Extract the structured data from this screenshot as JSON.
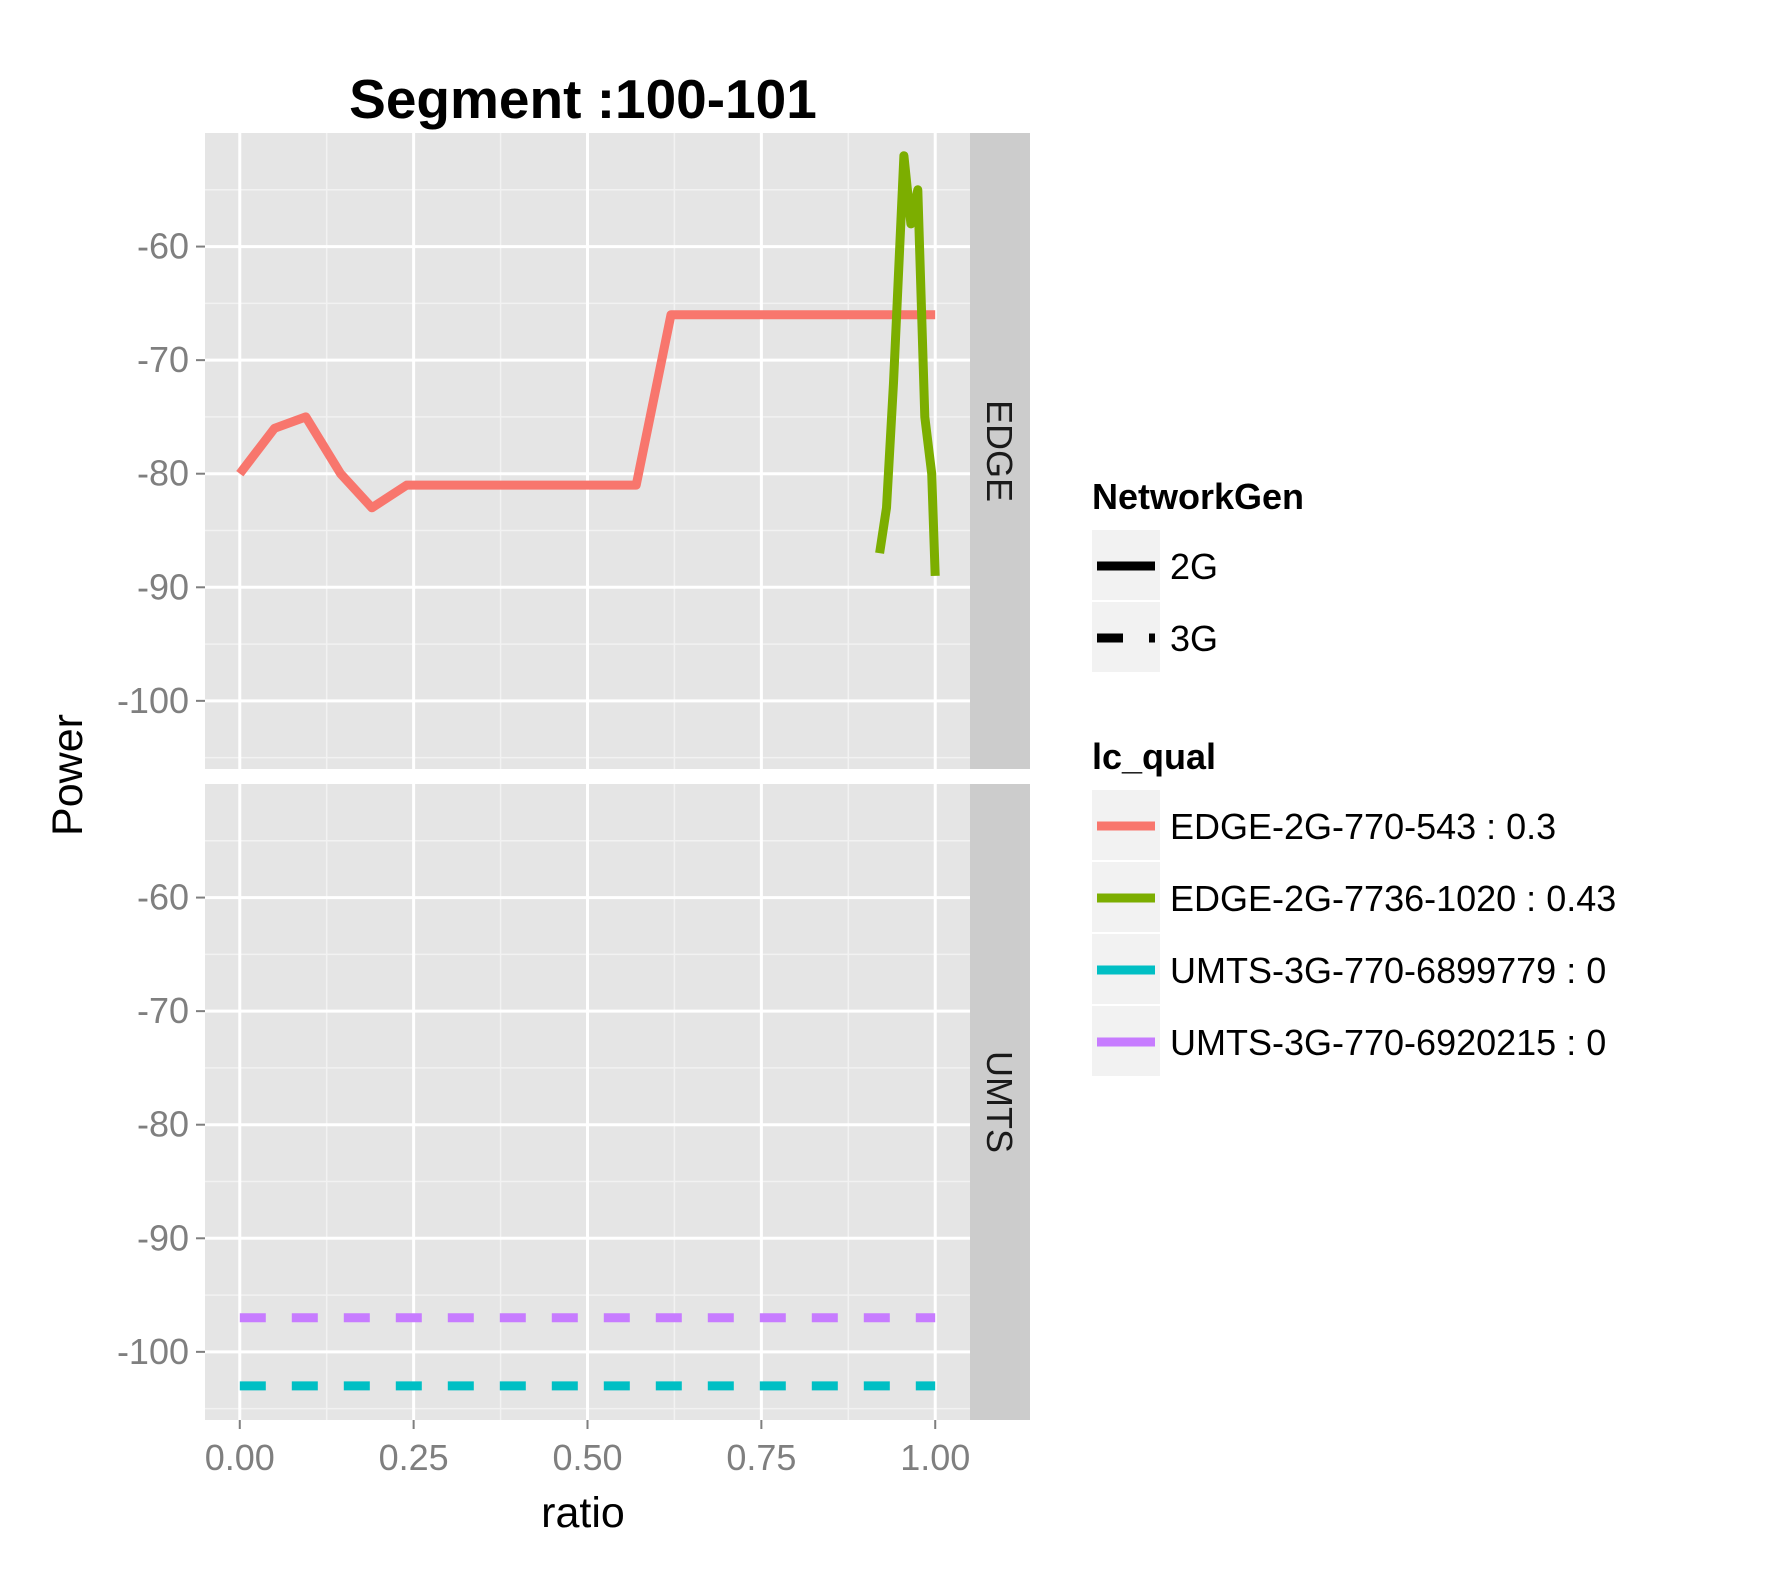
{
  "chart_data": {
    "type": "line",
    "title": "Segment :100-101",
    "xlabel": "ratio",
    "ylabel": "Power",
    "xlim": [
      -0.05,
      1.05
    ],
    "ylim": [
      -106,
      -50
    ],
    "x_ticks": [
      0,
      0.25,
      0.5,
      0.75,
      1
    ],
    "x_tick_labels": [
      "0.00",
      "0.25",
      "0.50",
      "0.75",
      "1.00"
    ],
    "y_ticks": [
      -100,
      -90,
      -80,
      -70,
      -60
    ],
    "y_tick_labels": [
      "-100",
      "-90",
      "-80",
      "-70",
      "-60"
    ],
    "grid": true,
    "panels": [
      {
        "strip": "EDGE",
        "series": [
          {
            "name": "EDGE-2G-770-543 : 0.3",
            "network": "2G",
            "color": "#F8766D",
            "x": [
              0,
              0.05,
              0.095,
              0.145,
              0.19,
              0.24,
              0.57,
              0.62,
              1.0
            ],
            "y": [
              -80,
              -76,
              -75,
              -80,
              -83,
              -81,
              -81,
              -66,
              -66
            ]
          },
          {
            "name": "EDGE-2G-7736-1020 : 0.43",
            "network": "2G",
            "color": "#7CAE00",
            "x": [
              0.92,
              0.93,
              0.94,
              0.955,
              0.965,
              0.975,
              0.985,
              0.995,
              1.0
            ],
            "y": [
              -87,
              -83,
              -72,
              -52,
              -58,
              -55,
              -75,
              -80,
              -89
            ]
          }
        ]
      },
      {
        "strip": "UMTS",
        "series": [
          {
            "name": "UMTS-3G-770-6899779 : 0",
            "network": "3G",
            "color": "#00BFC4",
            "x": [
              0,
              1.0
            ],
            "y": [
              -103,
              -103
            ]
          },
          {
            "name": "UMTS-3G-770-6920215 : 0",
            "network": "3G",
            "color": "#C77CFF",
            "x": [
              0,
              1.0
            ],
            "y": [
              -97,
              -97
            ]
          }
        ]
      }
    ],
    "legends": [
      {
        "title": "NetworkGen",
        "items": [
          {
            "label": "2G",
            "style": "solid",
            "color": "#000000"
          },
          {
            "label": "3G",
            "style": "dashed",
            "color": "#000000"
          }
        ]
      },
      {
        "title": "lc_qual",
        "items": [
          {
            "label": "EDGE-2G-770-543 : 0.3",
            "style": "solid",
            "color": "#F8766D"
          },
          {
            "label": "EDGE-2G-7736-1020 : 0.43",
            "style": "solid",
            "color": "#7CAE00"
          },
          {
            "label": "UMTS-3G-770-6899779 : 0",
            "style": "solid",
            "color": "#00BFC4"
          },
          {
            "label": "UMTS-3G-770-6920215 : 0",
            "style": "solid",
            "color": "#C77CFF"
          }
        ]
      }
    ],
    "legend_position": "right",
    "panel_background": "#E5E5E5",
    "strip_background": "#CCCCCC"
  }
}
